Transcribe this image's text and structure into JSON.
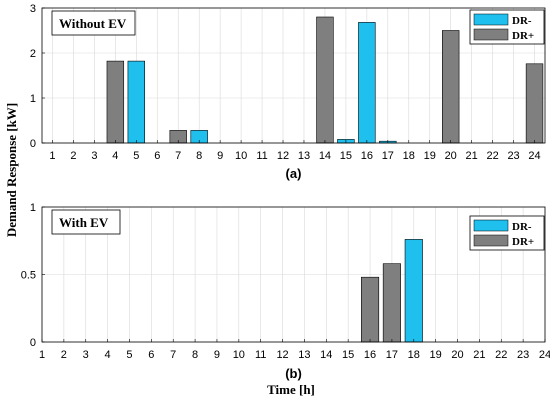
{
  "ylabel": "Demand Response [kW]",
  "xlabel": "Time [h]",
  "colors": {
    "dr_minus": "#1fbfee",
    "dr_plus": "#7f7f7f"
  },
  "chart_data": [
    {
      "type": "bar",
      "panel_label": "Without EV",
      "caption": "(a)",
      "categories": [
        "1",
        "2",
        "3",
        "4",
        "5",
        "6",
        "7",
        "8",
        "9",
        "10",
        "11",
        "12",
        "13",
        "14",
        "15",
        "16",
        "17",
        "18",
        "19",
        "20",
        "21",
        "22",
        "23",
        "24"
      ],
      "xlim": [
        0.5,
        24.5
      ],
      "ylim": [
        0,
        3
      ],
      "yticks": [
        "0",
        "1",
        "2",
        "3"
      ],
      "grid": true,
      "legend_position": "top-right",
      "series": [
        {
          "name": "DR-",
          "values": [
            0,
            0,
            0,
            0,
            1.82,
            0,
            0,
            0.28,
            0,
            0,
            0,
            0,
            0,
            0,
            0.08,
            2.68,
            0.04,
            0,
            0,
            0,
            0,
            0,
            0,
            0
          ]
        },
        {
          "name": "DR+",
          "values": [
            0,
            0,
            0,
            1.82,
            0,
            0,
            0.28,
            0,
            0,
            0,
            0,
            0,
            0,
            2.8,
            0,
            0,
            0,
            0,
            0,
            2.5,
            0,
            0,
            0,
            1.76
          ]
        }
      ]
    },
    {
      "type": "bar",
      "panel_label": "With EV",
      "caption": "(b)",
      "categories": [
        "1",
        "2",
        "3",
        "4",
        "5",
        "6",
        "7",
        "8",
        "9",
        "10",
        "11",
        "12",
        "13",
        "14",
        "15",
        "16",
        "17",
        "18",
        "19",
        "20",
        "21",
        "22",
        "23",
        "24"
      ],
      "xlim": [
        1,
        24
      ],
      "ylim": [
        0,
        1
      ],
      "yticks": [
        "0",
        "0.5",
        "1"
      ],
      "grid": true,
      "legend_position": "top-right",
      "series": [
        {
          "name": "DR-",
          "values": [
            0,
            0,
            0,
            0,
            0,
            0,
            0,
            0,
            0,
            0,
            0,
            0,
            0,
            0,
            0,
            0,
            0,
            0.76,
            0,
            0,
            0,
            0,
            0,
            0
          ]
        },
        {
          "name": "DR+",
          "values": [
            0,
            0,
            0,
            0,
            0,
            0,
            0,
            0,
            0,
            0,
            0,
            0,
            0,
            0,
            0,
            0.48,
            0.58,
            0,
            0,
            0,
            0,
            0,
            0,
            0
          ]
        }
      ]
    }
  ]
}
